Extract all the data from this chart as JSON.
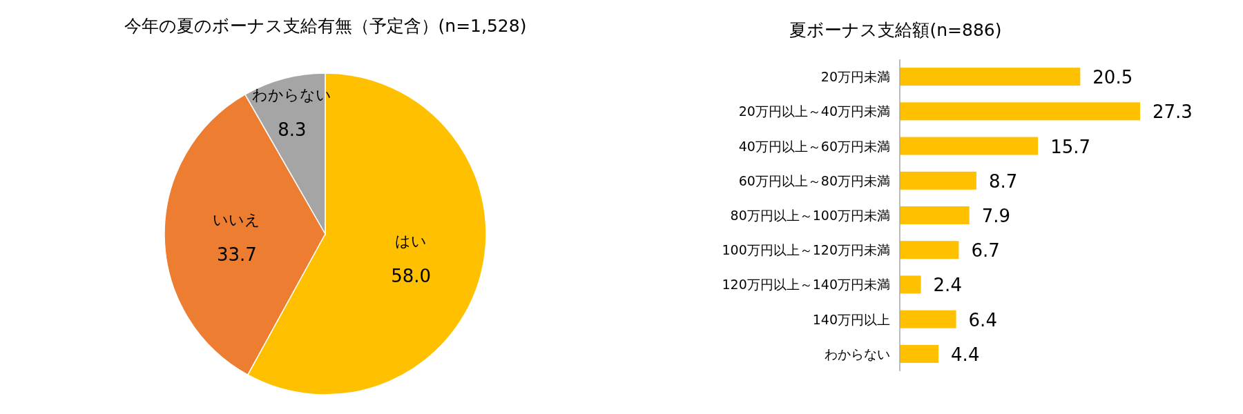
{
  "chart_data": [
    {
      "type": "pie",
      "title": "今年の夏のボーナス支給有無（予定含）(n=1,528)",
      "categories": [
        "はい",
        "いいえ",
        "わからない"
      ],
      "values": [
        58.0,
        33.7,
        8.3
      ],
      "value_labels": [
        "58.0",
        "33.7",
        "8.3"
      ],
      "colors": [
        "#ffc000",
        "#ed7d31",
        "#a5a5a5"
      ],
      "legend": false
    },
    {
      "type": "bar",
      "orientation": "horizontal",
      "title": "夏ボーナス支給額(n=886)",
      "categories": [
        "20万円未満",
        "20万円以上～40万円未満",
        "40万円以上～60万円未満",
        "60万円以上～80万円未満",
        "80万円以上～100万円未満",
        "100万円以上～120万円未満",
        "120万円以上～140万円未満",
        "140万円以上",
        "わからない"
      ],
      "values": [
        20.5,
        27.3,
        15.7,
        8.7,
        7.9,
        6.7,
        2.4,
        6.4,
        4.4
      ],
      "color": "#ffc000",
      "data_labels": true,
      "grid": false
    }
  ]
}
